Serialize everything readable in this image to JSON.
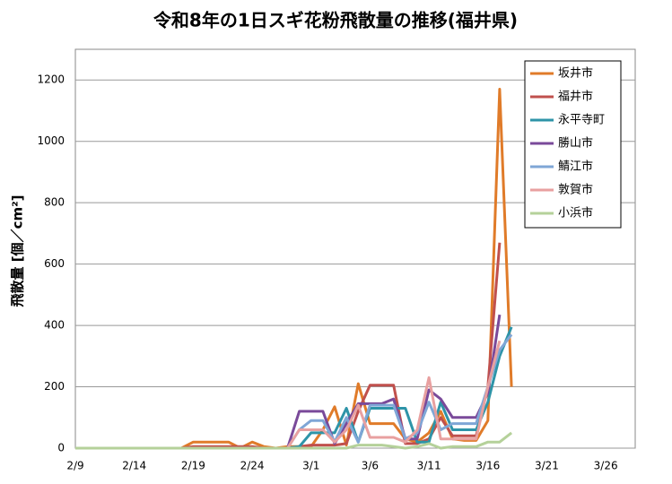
{
  "chart_data": {
    "type": "line",
    "title": "令和8年の1日スギ花粉飛散量の推移(福井県)",
    "y_label": "飛散量 [個／cm²]",
    "categories": [
      "2/9",
      null,
      null,
      null,
      null,
      "2/14",
      null,
      null,
      null,
      null,
      "2/19",
      null,
      null,
      null,
      null,
      "2/24",
      null,
      null,
      null,
      null,
      "3/1",
      null,
      null,
      null,
      null,
      "3/6",
      null,
      null,
      null,
      null,
      "3/11",
      null,
      null,
      null,
      null,
      "3/16",
      null,
      null,
      null,
      null,
      "3/21",
      null,
      null,
      null,
      null,
      "3/26",
      null,
      null
    ],
    "ylim": [
      0,
      1300
    ],
    "yticks": [
      0,
      200,
      400,
      600,
      800,
      1000,
      1200
    ],
    "grid": true,
    "legend": "upper right",
    "series": [
      {
        "name": "坂井市",
        "color": "#e07b29",
        "values": [
          0,
          0,
          0,
          0,
          0,
          0,
          0,
          0,
          0,
          0,
          20,
          20,
          20,
          20,
          0,
          20,
          5,
          0,
          5,
          5,
          5,
          60,
          135,
          10,
          210,
          80,
          80,
          80,
          30,
          20,
          50,
          120,
          30,
          25,
          25,
          90,
          1170,
          200,
          null,
          null,
          null,
          null,
          null,
          null,
          null,
          null,
          null,
          null
        ]
      },
      {
        "name": "福井市",
        "color": "#c0504d",
        "values": [
          0,
          0,
          0,
          0,
          0,
          0,
          0,
          0,
          0,
          0,
          5,
          5,
          5,
          5,
          5,
          5,
          0,
          0,
          0,
          5,
          10,
          10,
          10,
          15,
          120,
          205,
          205,
          205,
          15,
          15,
          30,
          100,
          40,
          40,
          40,
          200,
          670,
          null,
          null,
          null,
          null,
          null,
          null,
          null,
          null,
          null,
          null,
          null
        ]
      },
      {
        "name": "永平寺町",
        "color": "#2e94a8",
        "values": [
          0,
          0,
          0,
          0,
          0,
          0,
          0,
          0,
          0,
          0,
          0,
          0,
          0,
          0,
          0,
          0,
          0,
          0,
          0,
          5,
          50,
          50,
          50,
          130,
          20,
          130,
          130,
          130,
          130,
          20,
          20,
          150,
          60,
          60,
          60,
          150,
          300,
          395,
          null,
          null,
          null,
          null,
          null,
          null,
          null,
          null,
          null,
          null
        ]
      },
      {
        "name": "勝山市",
        "color": "#7a4a9a",
        "values": [
          0,
          0,
          0,
          0,
          0,
          0,
          0,
          0,
          0,
          0,
          0,
          0,
          0,
          0,
          0,
          0,
          0,
          0,
          0,
          120,
          120,
          120,
          15,
          80,
          145,
          145,
          145,
          160,
          30,
          30,
          190,
          160,
          100,
          100,
          100,
          180,
          435,
          null,
          null,
          null,
          null,
          null,
          null,
          null,
          null,
          null,
          null,
          null
        ]
      },
      {
        "name": "鯖江市",
        "color": "#7fa6d6",
        "values": [
          0,
          0,
          0,
          0,
          0,
          0,
          0,
          0,
          0,
          0,
          0,
          0,
          0,
          0,
          0,
          0,
          0,
          0,
          0,
          60,
          90,
          90,
          20,
          100,
          20,
          140,
          140,
          140,
          30,
          50,
          150,
          60,
          80,
          80,
          80,
          200,
          320,
          370,
          null,
          null,
          null,
          null,
          null,
          null,
          null,
          null,
          null,
          null
        ]
      },
      {
        "name": "敦賀市",
        "color": "#e8a0a0",
        "values": [
          0,
          0,
          0,
          0,
          0,
          0,
          0,
          0,
          0,
          0,
          0,
          0,
          0,
          0,
          0,
          0,
          0,
          0,
          0,
          60,
          60,
          60,
          20,
          60,
          140,
          35,
          35,
          35,
          20,
          60,
          230,
          30,
          30,
          30,
          30,
          200,
          350,
          null,
          null,
          null,
          null,
          null,
          null,
          null,
          null,
          null,
          null,
          null
        ]
      },
      {
        "name": "小浜市",
        "color": "#b5d19a",
        "values": [
          0,
          0,
          0,
          0,
          0,
          0,
          0,
          0,
          0,
          0,
          0,
          0,
          0,
          0,
          0,
          0,
          0,
          0,
          0,
          0,
          0,
          0,
          0,
          0,
          10,
          10,
          10,
          5,
          0,
          5,
          15,
          0,
          5,
          5,
          5,
          20,
          20,
          50,
          null,
          null,
          null,
          null,
          null,
          null,
          null,
          null,
          null,
          null
        ]
      }
    ]
  }
}
